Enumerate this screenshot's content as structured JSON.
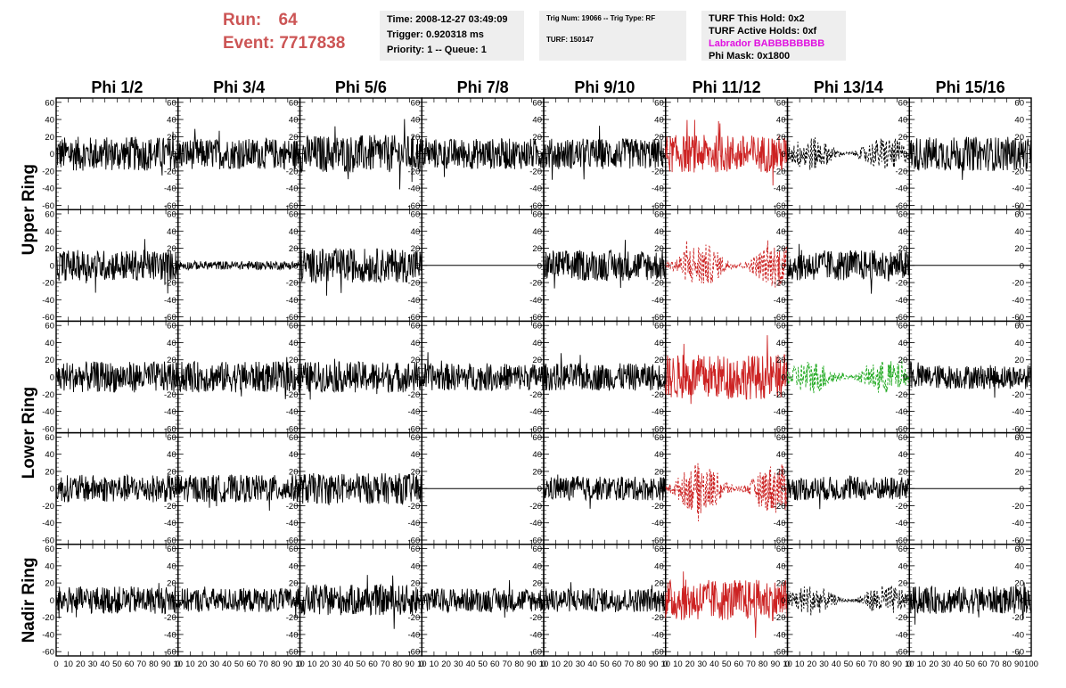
{
  "header": {
    "run_label": "Run:",
    "run_value": "64",
    "event_label": "Event:",
    "event_value": "7717838",
    "time": "Time: 2008-12-27 03:49:09",
    "trigger": "Trigger: 0.920318 ms",
    "priority": "Priority: 1 -- Queue: 1",
    "trig_num": "Trig Num: 19066 -- Trig Type: RF",
    "turf": "TURF: 150147",
    "turf_hold": "TURF This Hold: 0x2",
    "turf_active": "TURF Active Holds: 0xf",
    "labrador": "Labrador BABBBBBBBB",
    "phi_mask": "Phi Mask: 0x1800",
    "colors": {
      "run_text": "#cc5555",
      "labrador": "#e010e0",
      "info_bg": "#eeeeee"
    }
  },
  "chart_data": {
    "type": "line",
    "columns": [
      "Phi 1/2",
      "Phi 3/4",
      "Phi 5/6",
      "Phi 7/8",
      "Phi 9/10",
      "Phi 11/12",
      "Phi 13/14",
      "Phi 15/16"
    ],
    "row_groups": [
      "Upper Ring",
      "Lower Ring",
      "Nadir Ring"
    ],
    "rows": 5,
    "ylim": [
      -65,
      65
    ],
    "xlim": [
      0,
      100
    ],
    "yticks": [
      60,
      40,
      20,
      0,
      -20,
      -40,
      -60
    ],
    "xtick_labels": [
      "0",
      "10",
      "20",
      "30",
      "40",
      "50",
      "60",
      "70",
      "80",
      "90",
      "10"
    ],
    "last_xtick_label": "100",
    "series_colors": {
      "black": "#000000",
      "red": "#cc2222",
      "green": "#22aa22"
    },
    "panels": [
      [
        {
          "style": "solid",
          "color": "black",
          "amp": 20
        },
        {
          "style": "solid",
          "color": "black",
          "amp": 18
        },
        {
          "style": "solid",
          "color": "black",
          "amp": 22
        },
        {
          "style": "solid",
          "color": "black",
          "amp": 18
        },
        {
          "style": "solid",
          "color": "black",
          "amp": 18
        },
        {
          "style": "solid",
          "color": "red",
          "amp": 22
        },
        {
          "style": "dashed",
          "color": "black",
          "amp": 20
        },
        {
          "style": "solid",
          "color": "black",
          "amp": 20
        }
      ],
      [
        {
          "style": "solid",
          "color": "black",
          "amp": 18
        },
        {
          "style": "solid",
          "color": "black",
          "amp": 5
        },
        {
          "style": "solid",
          "color": "black",
          "amp": 20
        },
        {
          "style": "flat",
          "color": "black",
          "amp": 0
        },
        {
          "style": "solid",
          "color": "black",
          "amp": 18
        },
        {
          "style": "dashed",
          "color": "red",
          "amp": 26
        },
        {
          "style": "solid",
          "color": "black",
          "amp": 18
        },
        {
          "style": "flat",
          "color": "black",
          "amp": 0
        }
      ],
      [
        {
          "style": "solid",
          "color": "black",
          "amp": 18
        },
        {
          "style": "solid",
          "color": "black",
          "amp": 18
        },
        {
          "style": "solid",
          "color": "black",
          "amp": 18
        },
        {
          "style": "solid",
          "color": "black",
          "amp": 16
        },
        {
          "style": "solid",
          "color": "black",
          "amp": 16
        },
        {
          "style": "solid",
          "color": "red",
          "amp": 26
        },
        {
          "style": "dashed",
          "color": "green",
          "amp": 20
        },
        {
          "style": "solid",
          "color": "black",
          "amp": 14
        }
      ],
      [
        {
          "style": "solid",
          "color": "black",
          "amp": 16
        },
        {
          "style": "solid",
          "color": "black",
          "amp": 16
        },
        {
          "style": "solid",
          "color": "black",
          "amp": 18
        },
        {
          "style": "flat",
          "color": "black",
          "amp": 0
        },
        {
          "style": "solid",
          "color": "black",
          "amp": 14
        },
        {
          "style": "dashed",
          "color": "red",
          "amp": 30
        },
        {
          "style": "solid",
          "color": "black",
          "amp": 14
        },
        {
          "style": "flat",
          "color": "black",
          "amp": 0
        }
      ],
      [
        {
          "style": "solid",
          "color": "black",
          "amp": 16
        },
        {
          "style": "solid",
          "color": "black",
          "amp": 14
        },
        {
          "style": "solid",
          "color": "black",
          "amp": 18
        },
        {
          "style": "solid",
          "color": "black",
          "amp": 14
        },
        {
          "style": "solid",
          "color": "black",
          "amp": 14
        },
        {
          "style": "solid",
          "color": "red",
          "amp": 24
        },
        {
          "style": "dashed",
          "color": "black",
          "amp": 18
        },
        {
          "style": "solid",
          "color": "black",
          "amp": 16
        }
      ]
    ]
  }
}
